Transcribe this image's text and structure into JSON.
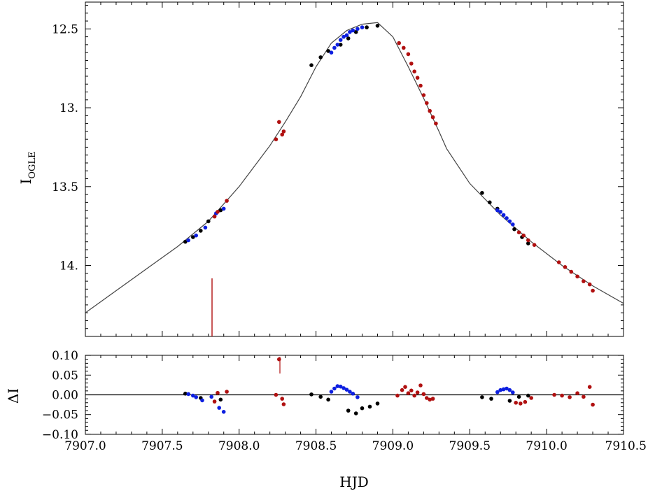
{
  "colors": {
    "observatory_a": "#000000",
    "observatory_b": "#0d1fe0",
    "observatory_c": "#b01010",
    "model": "#444444"
  },
  "chart_data": [
    {
      "type": "scatter",
      "panel": "light-curve",
      "xlabel": "HJD",
      "ylabel": "I",
      "ylabel_sub": "OGLE",
      "xlim": [
        7907.0,
        7910.5
      ],
      "ylim": [
        14.45,
        12.33
      ],
      "y_inverted": true,
      "yticks": [
        "12.5",
        "13.",
        "13.5",
        "14."
      ],
      "model": {
        "x": [
          7907.0,
          7907.2,
          7907.4,
          7907.6,
          7907.65,
          7907.8,
          7908.0,
          7908.2,
          7908.3,
          7908.4,
          7908.5,
          7908.6,
          7908.7,
          7908.8,
          7908.9,
          7909.0,
          7909.1,
          7909.2,
          7909.3,
          7909.35,
          7909.5,
          7909.7,
          7909.9,
          7910.1,
          7910.3,
          7910.5
        ],
        "y": [
          14.3,
          14.16,
          14.02,
          13.88,
          13.84,
          13.72,
          13.5,
          13.24,
          13.09,
          12.93,
          12.74,
          12.59,
          12.51,
          12.47,
          12.46,
          12.55,
          12.74,
          12.94,
          13.15,
          13.26,
          13.48,
          13.68,
          13.85,
          14.0,
          14.13,
          14.24
        ]
      },
      "series": [
        {
          "color_key": "observatory_a",
          "x": [
            7907.65,
            7907.7,
            7907.75,
            7907.8,
            7907.88,
            7908.47,
            7908.53,
            7908.58,
            7908.66,
            7908.71,
            7908.76,
            7908.83,
            7908.9,
            7909.58,
            7909.63,
            7909.68,
            7909.79,
            7909.84,
            7909.88
          ],
          "y": [
            13.85,
            13.82,
            13.78,
            13.72,
            13.65,
            12.73,
            12.68,
            12.64,
            12.6,
            12.56,
            12.52,
            12.49,
            12.48,
            13.54,
            13.6,
            13.64,
            13.77,
            13.82,
            13.86
          ]
        },
        {
          "color_key": "observatory_b",
          "x": [
            7907.67,
            7907.72,
            7907.78,
            7907.85,
            7907.9,
            7908.6,
            7908.62,
            7908.64,
            7908.66,
            7908.68,
            7908.7,
            7908.72,
            7908.74,
            7908.77,
            7908.8,
            7909.68,
            7909.7,
            7909.72,
            7909.74,
            7909.76,
            7909.78
          ],
          "y": [
            13.84,
            13.81,
            13.76,
            13.67,
            13.64,
            12.65,
            12.62,
            12.6,
            12.57,
            12.55,
            12.54,
            12.52,
            12.51,
            12.5,
            12.49,
            13.65,
            13.66,
            13.68,
            13.7,
            13.72,
            13.74
          ]
        },
        {
          "color_key": "observatory_c",
          "x": [
            7907.84,
            7907.86,
            7907.92,
            7908.24,
            7908.26,
            7908.28,
            7908.29,
            7909.04,
            7909.07,
            7909.1,
            7909.12,
            7909.14,
            7909.16,
            7909.18,
            7909.2,
            7909.22,
            7909.24,
            7909.26,
            7909.28,
            7909.82,
            7909.85,
            7909.88,
            7909.92,
            7910.08,
            7910.12,
            7910.16,
            7910.2,
            7910.24,
            7910.28,
            7910.3
          ],
          "y": [
            13.69,
            13.66,
            13.59,
            13.2,
            13.09,
            13.17,
            13.15,
            12.59,
            12.62,
            12.66,
            12.72,
            12.77,
            12.81,
            12.86,
            12.92,
            12.97,
            13.02,
            13.06,
            13.1,
            13.79,
            13.81,
            13.84,
            13.87,
            13.98,
            14.01,
            14.04,
            14.07,
            14.1,
            14.12,
            14.16
          ]
        }
      ]
    },
    {
      "type": "scatter",
      "panel": "residuals",
      "xlabel": "HJD",
      "ylabel": "ΔI",
      "xlim": [
        7907.0,
        7910.5
      ],
      "ylim": [
        -0.1,
        0.1
      ],
      "xticks": [
        "7907.0",
        "7907.5",
        "7908.0",
        "7908.5",
        "7909.0",
        "7909.5",
        "7910.0",
        "7910.5"
      ],
      "yticks": [
        "0.10",
        "0.05",
        "0.00",
        "−0.05",
        "−0.10"
      ],
      "series": [
        {
          "color_key": "observatory_a",
          "x": [
            7907.65,
            7907.75,
            7907.88,
            7908.47,
            7908.53,
            7908.58,
            7908.71,
            7908.76,
            7908.8,
            7908.85,
            7908.9,
            7909.58,
            7909.64,
            7909.76,
            7909.82,
            7909.88
          ],
          "y": [
            0.003,
            -0.008,
            -0.012,
            0.001,
            -0.005,
            -0.012,
            -0.04,
            -0.047,
            -0.034,
            -0.03,
            -0.022,
            -0.006,
            -0.01,
            -0.015,
            -0.005,
            -0.002
          ]
        },
        {
          "color_key": "observatory_b",
          "x": [
            7907.67,
            7907.7,
            7907.72,
            7907.76,
            7907.82,
            7907.87,
            7907.9,
            7908.6,
            7908.62,
            7908.64,
            7908.66,
            7908.68,
            7908.7,
            7908.72,
            7908.74,
            7908.77,
            7909.68,
            7909.7,
            7909.72,
            7909.74,
            7909.76,
            7909.78
          ],
          "y": [
            0.002,
            -0.002,
            -0.006,
            -0.014,
            -0.005,
            -0.033,
            -0.043,
            0.008,
            0.016,
            0.022,
            0.021,
            0.017,
            0.013,
            0.008,
            0.003,
            -0.006,
            0.007,
            0.012,
            0.014,
            0.016,
            0.012,
            0.006
          ]
        },
        {
          "color_key": "observatory_c",
          "x": [
            7907.84,
            7907.86,
            7907.92,
            7908.24,
            7908.26,
            7908.28,
            7908.29,
            7909.03,
            7909.06,
            7909.08,
            7909.1,
            7909.12,
            7909.14,
            7909.16,
            7909.18,
            7909.2,
            7909.22,
            7909.24,
            7909.26,
            7909.8,
            7909.83,
            7909.86,
            7909.9,
            7910.05,
            7910.1,
            7910.15,
            7910.2,
            7910.24,
            7910.28,
            7910.3
          ],
          "y": [
            -0.017,
            0.005,
            0.008,
            0.0,
            0.09,
            -0.01,
            -0.024,
            -0.002,
            0.012,
            0.02,
            0.004,
            0.011,
            -0.002,
            0.006,
            0.024,
            0.002,
            -0.008,
            -0.012,
            -0.01,
            -0.02,
            -0.022,
            -0.018,
            -0.008,
            0.0,
            -0.002,
            -0.006,
            0.004,
            -0.005,
            0.02,
            -0.025
          ]
        }
      ]
    }
  ]
}
